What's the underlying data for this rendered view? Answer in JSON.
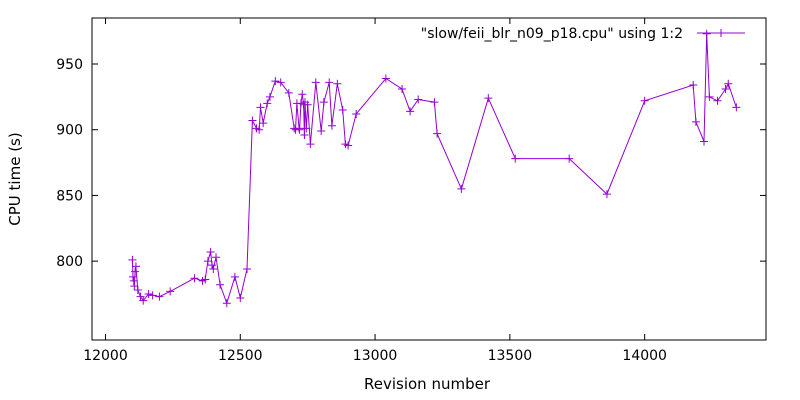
{
  "chart_data": {
    "type": "line",
    "xlabel": "Revision number",
    "ylabel": "CPU time (s)",
    "xlim": [
      11950,
      14450
    ],
    "ylim": [
      740,
      985
    ],
    "xticks": [
      12000,
      12500,
      13000,
      13500,
      14000
    ],
    "yticks": [
      800,
      850,
      900,
      950
    ],
    "grid": false,
    "legend_position": "top-right",
    "series": [
      {
        "name": "\"slow/feii_blr_n09_p18.cpu\" using 1:2",
        "color": "#9400d3",
        "marker": "plus",
        "x": [
          12100,
          12102,
          12105,
          12107,
          12110,
          12113,
          12120,
          12130,
          12140,
          12160,
          12175,
          12200,
          12240,
          12330,
          12360,
          12370,
          12380,
          12390,
          12395,
          12400,
          12410,
          12425,
          12450,
          12480,
          12500,
          12525,
          12545,
          12560,
          12570,
          12575,
          12585,
          12600,
          12610,
          12630,
          12650,
          12680,
          12700,
          12705,
          12710,
          12718,
          12720,
          12725,
          12730,
          12735,
          12738,
          12740,
          12745,
          12750,
          12760,
          12780,
          12800,
          12810,
          12830,
          12840,
          12860,
          12880,
          12890,
          12900,
          12930,
          13040,
          13100,
          13130,
          13160,
          13220,
          13230,
          13320,
          13420,
          13520,
          13720,
          13860,
          14000,
          14180,
          14190,
          14220,
          14230,
          14240,
          14270,
          14300,
          14310,
          14340
        ],
        "y": [
          801,
          788,
          785,
          781,
          792,
          796,
          778,
          773,
          770,
          775,
          774,
          773,
          777,
          787,
          785,
          786,
          800,
          807,
          797,
          794,
          803,
          782,
          768,
          788,
          772,
          794,
          907,
          901,
          900,
          917,
          905,
          920,
          925,
          937,
          936,
          928,
          901,
          900,
          920,
          901,
          900,
          920,
          927,
          919,
          896,
          921,
          901,
          919,
          889,
          936,
          899,
          921,
          936,
          903,
          935,
          915,
          889,
          888,
          912,
          939,
          931,
          914,
          923,
          921,
          897,
          855,
          924,
          878,
          878,
          851,
          922,
          934,
          906,
          891,
          973,
          925,
          922,
          931,
          935,
          917
        ]
      }
    ]
  }
}
